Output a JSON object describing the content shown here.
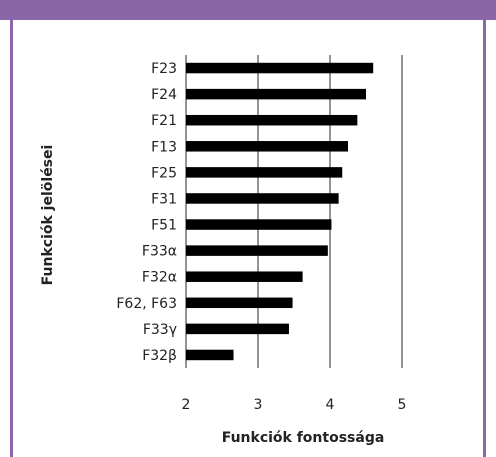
{
  "theme": {
    "frame_color": "#8a65a8",
    "bar_color": "#000000",
    "grid_color": "#4d4d4d",
    "text_color": "#222222"
  },
  "chart_data": {
    "type": "bar",
    "orientation": "horizontal",
    "categories": [
      "F23",
      "F24",
      "F21",
      "F13",
      "F25",
      "F31",
      "F51",
      "F33α",
      "F32α",
      "F62, F63",
      "F33γ",
      "F32β"
    ],
    "values": [
      4.6,
      4.5,
      4.38,
      4.25,
      4.17,
      4.12,
      4.02,
      3.97,
      3.62,
      3.48,
      3.43,
      2.66
    ],
    "xlabel": "Funkciók fontossága",
    "ylabel": "Funkciók jelölései",
    "xlim": [
      2,
      5
    ],
    "x_ticks": [
      2,
      3,
      4,
      5
    ],
    "grid": "vertical",
    "legend": "none"
  }
}
